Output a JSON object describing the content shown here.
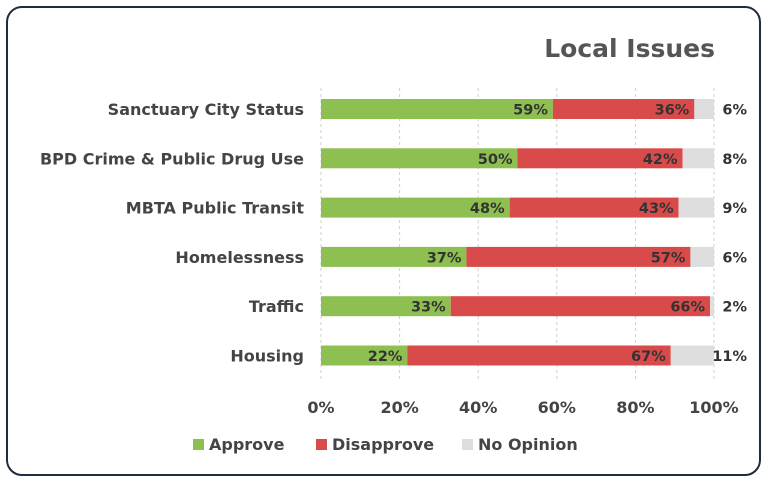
{
  "chart_data": {
    "type": "bar",
    "orientation": "horizontal",
    "stacked": true,
    "title": "Local Issues",
    "categories": [
      "Sanctuary City Status",
      "BPD Crime & Public Drug Use",
      "MBTA Public Transit",
      "Homelessness",
      "Traffic",
      "Housing"
    ],
    "series": [
      {
        "name": "Approve",
        "color": "#8dc051",
        "values": [
          59,
          50,
          48,
          37,
          33,
          22
        ]
      },
      {
        "name": "Disapprove",
        "color": "#d94b4b",
        "values": [
          36,
          42,
          43,
          57,
          66,
          67
        ]
      },
      {
        "name": "No Opinion",
        "color": "#dedede",
        "values": [
          6,
          8,
          9,
          6,
          2,
          11
        ]
      }
    ],
    "xlim": [
      0,
      100
    ],
    "xticks": [
      "0%",
      "20%",
      "40%",
      "60%",
      "80%",
      "100%"
    ],
    "value_suffix": "%",
    "legend_position": "bottom",
    "grid": "vertical-dashed"
  }
}
